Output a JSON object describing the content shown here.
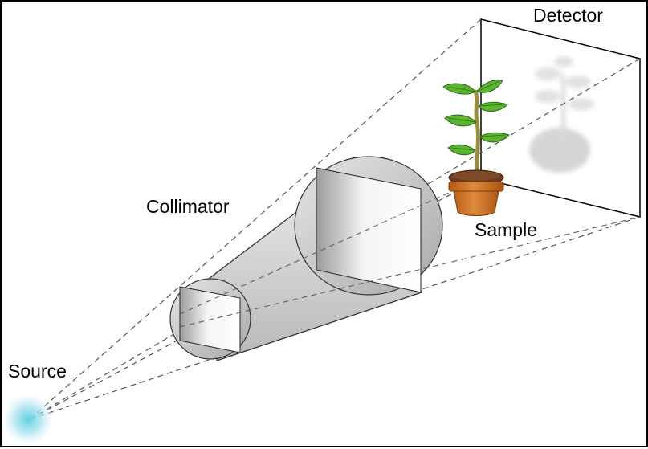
{
  "labels": {
    "detector": "Detector",
    "collimator": "Collimator",
    "sample": "Sample",
    "source": "Source"
  },
  "icons": [
    "source-glow-icon",
    "plant-pot-icon",
    "plant-shadow-icon"
  ],
  "colors": {
    "ray_line": "#555555",
    "collimator_fill": "#d8d8d8",
    "pot": "#cc6a1f",
    "leaf": "#5cb531",
    "stem": "#9a8e3c",
    "source_glow": "#7fd6e8"
  }
}
